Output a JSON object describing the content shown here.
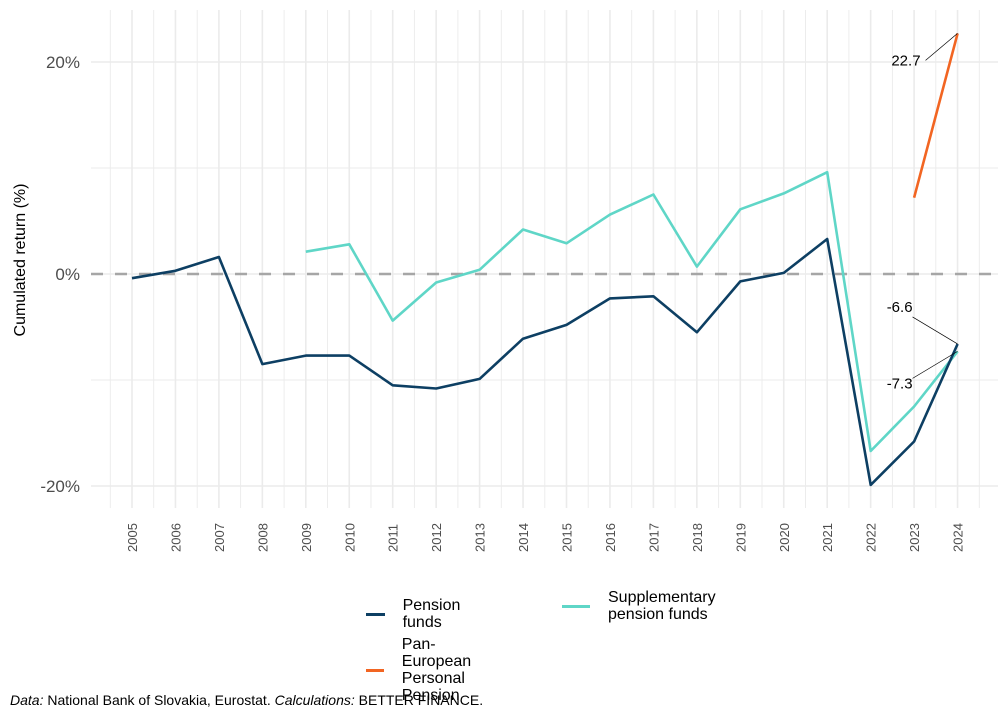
{
  "chart_data": {
    "type": "line",
    "title": "",
    "xlabel": "",
    "ylabel": "Cumulated return  (%)",
    "x": [
      2005,
      2006,
      2007,
      2008,
      2009,
      2010,
      2011,
      2012,
      2013,
      2014,
      2015,
      2016,
      2017,
      2018,
      2019,
      2020,
      2021,
      2022,
      2023,
      2024
    ],
    "xlim": [
      2003.6,
      2025.2
    ],
    "ylim": [
      -22,
      25
    ],
    "yticks": [
      -20,
      0,
      20
    ],
    "ytick_labels": [
      "-20%",
      "0%",
      "20%"
    ],
    "ygrid_minor": [
      -10,
      10
    ],
    "grid": true,
    "reference_line": {
      "y": 0,
      "style": "dashed",
      "color": "#a6a6a6"
    },
    "legend_position": "bottom",
    "series": [
      {
        "name": "Pension funds",
        "color": "#0d3f63",
        "values": [
          -0.4,
          0.3,
          1.6,
          -8.5,
          -7.7,
          -7.7,
          -10.5,
          -10.8,
          -9.9,
          -6.1,
          -4.8,
          -2.3,
          -2.1,
          -5.5,
          -0.7,
          0.1,
          3.3,
          -19.9,
          -15.8,
          -6.6
        ]
      },
      {
        "name": "Supplementary pension funds",
        "color": "#5fd6c7",
        "values": [
          null,
          null,
          null,
          null,
          2.1,
          2.8,
          -4.4,
          -0.8,
          0.4,
          4.2,
          2.9,
          5.6,
          7.5,
          0.7,
          6.1,
          7.6,
          9.6,
          -16.7,
          -12.5,
          -7.3
        ]
      },
      {
        "name": "Pan-European Personal Pension",
        "color": "#f26522",
        "values": [
          null,
          null,
          null,
          null,
          null,
          null,
          null,
          null,
          null,
          null,
          null,
          null,
          null,
          null,
          null,
          null,
          null,
          null,
          7.2,
          22.7
        ]
      }
    ],
    "annotations": [
      {
        "series": 2,
        "x": 2024,
        "label": "22.7"
      },
      {
        "series": 0,
        "x": 2024,
        "label": "-6.6"
      },
      {
        "series": 1,
        "x": 2024,
        "label": "-7.3"
      }
    ]
  },
  "legend": {
    "items": [
      {
        "lines": [
          "Pension funds"
        ],
        "color": "#0d3f63"
      },
      {
        "lines": [
          "Supplementary",
          "pension funds"
        ],
        "color": "#5fd6c7"
      },
      {
        "lines": [
          "Pan-European",
          "Personal Pension"
        ],
        "color": "#f26522"
      }
    ]
  },
  "caption": {
    "data_label": "Data:",
    "data_text": " National Bank of Slovakia, Eurostat. ",
    "calc_label": "Calculations:",
    "calc_text": " BETTER FINANCE."
  }
}
